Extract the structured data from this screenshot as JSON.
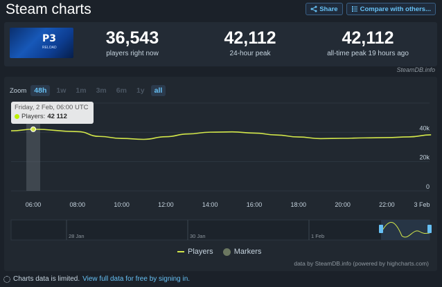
{
  "header": {
    "title": "Steam charts",
    "share_label": "Share",
    "compare_label": "Compare with others..."
  },
  "game": {
    "logo_text": "P3",
    "logo_sub": "RELOAD"
  },
  "stats": [
    {
      "value": "36,543",
      "label": "players right now"
    },
    {
      "value": "42,112",
      "label": "24-hour peak"
    },
    {
      "value": "42,112",
      "label": "all-time peak 19 hours ago"
    }
  ],
  "credit": "SteamDB.info",
  "zoom": {
    "label": "Zoom",
    "options": [
      "48h",
      "1w",
      "1m",
      "3m",
      "6m",
      "1y",
      "all"
    ],
    "active": [
      "48h",
      "all"
    ]
  },
  "tooltip": {
    "date": "Friday, 2 Feb, 06:00 UTC",
    "series": "Players:",
    "value": "42 112"
  },
  "chart_data": {
    "type": "line",
    "series": [
      {
        "name": "Players",
        "color": "#d4e84a",
        "x": [
          "04:00",
          "06:00",
          "08:00",
          "09:00",
          "10:00",
          "11:00",
          "12:00",
          "13:00",
          "14:00",
          "15:00",
          "16:00",
          "17:00",
          "18:00",
          "19:00",
          "20:00",
          "21:00",
          "22:00",
          "23:00",
          "3 Feb"
        ],
        "values": [
          41000,
          42112,
          40500,
          37200,
          35800,
          35200,
          37000,
          38900,
          40100,
          40300,
          39500,
          38200,
          36800,
          35700,
          35900,
          36200,
          36400,
          36900,
          38300
        ]
      }
    ],
    "x_ticks": [
      "06:00",
      "08:00",
      "10:00",
      "12:00",
      "14:00",
      "16:00",
      "18:00",
      "20:00",
      "22:00",
      "3 Feb"
    ],
    "y_ticks": [
      "0",
      "20k",
      "40k"
    ],
    "ylim": [
      0,
      60000
    ],
    "legend": [
      "Players",
      "Markers"
    ],
    "navigator_ticks": [
      "28 Jan",
      "30 Jan",
      "1 Feb"
    ],
    "grid": true
  },
  "chart_credit": "data by SteamDB.info (powered by highcharts.com)",
  "footer": {
    "text": "Charts data is limited.",
    "link": "View full data for free by signing in."
  },
  "colors": {
    "accent": "#66c0f4",
    "line": "#d4e84a",
    "background": "#1b2129"
  }
}
